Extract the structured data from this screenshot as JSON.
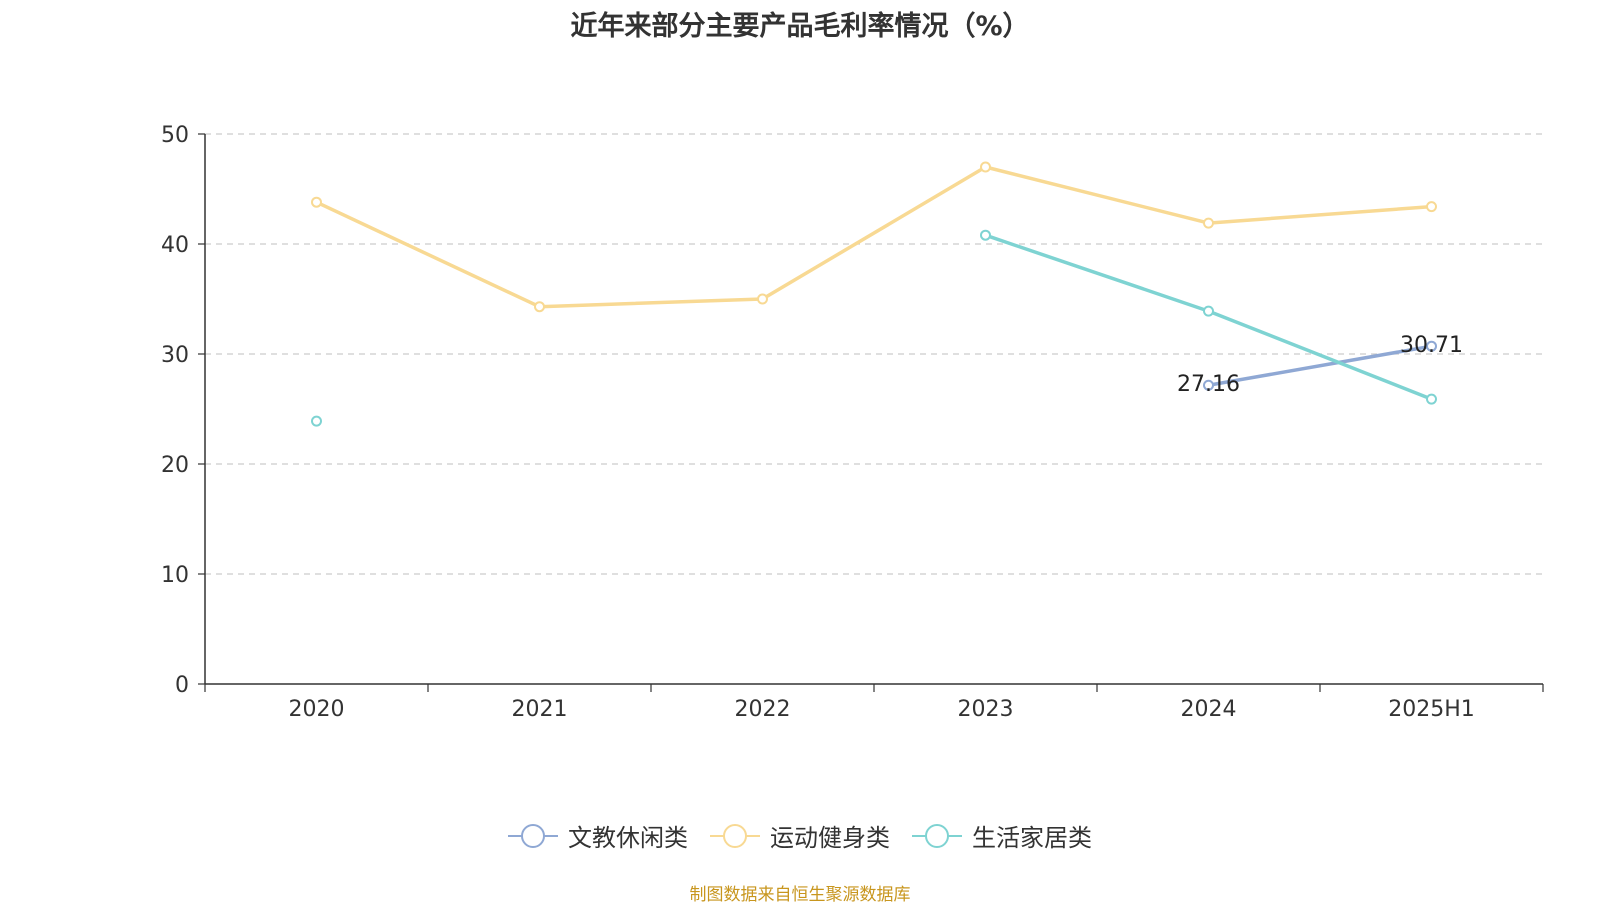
{
  "chart_data": {
    "type": "line",
    "title": "近年来部分主要产品毛利率情况（%）",
    "xlabel": "",
    "ylabel": "",
    "categories": [
      "2020",
      "2021",
      "2022",
      "2023",
      "2024",
      "2025H1"
    ],
    "ylim": [
      0,
      50
    ],
    "yticks": [
      0,
      10,
      20,
      30,
      40,
      50
    ],
    "grid": true,
    "legend_position": "bottom",
    "series": [
      {
        "name": "文教休闲类",
        "color": "#8fa8d4",
        "values": [
          null,
          null,
          null,
          null,
          27.16,
          30.71
        ],
        "labels": [
          null,
          null,
          null,
          null,
          "27.16",
          "30.71"
        ]
      },
      {
        "name": "运动健身类",
        "color": "#f8d993",
        "values": [
          43.8,
          34.3,
          35.0,
          47.0,
          41.9,
          43.4
        ]
      },
      {
        "name": "生活家居类",
        "color": "#7ed3d2",
        "values": [
          23.9,
          null,
          null,
          40.8,
          33.9,
          25.9
        ]
      }
    ]
  },
  "source_note": "制图数据来自恒生聚源数据库"
}
